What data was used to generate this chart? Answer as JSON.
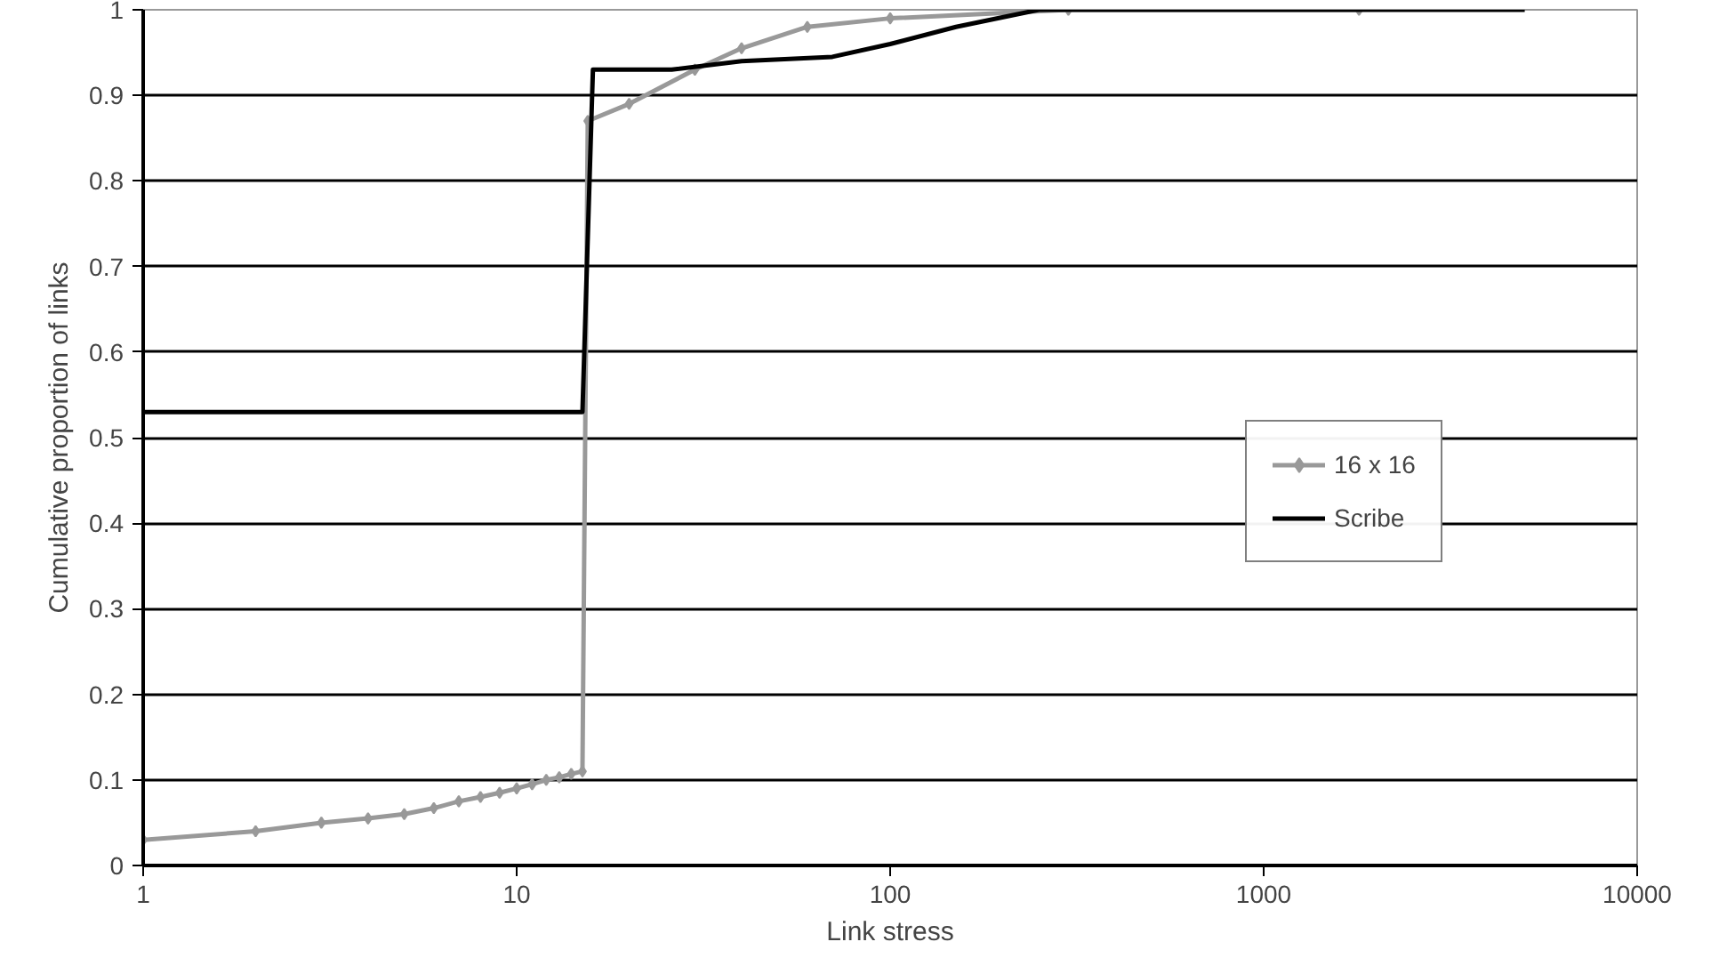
{
  "chart_data": {
    "type": "line",
    "xlabel": "Link stress",
    "ylabel": "Cumulative proportion of links",
    "log": "x",
    "xlim": [
      1,
      10000
    ],
    "ylim": [
      0,
      1
    ],
    "xticks": [
      1,
      10,
      100,
      1000,
      10000
    ],
    "yticks": [
      0,
      0.1,
      0.2,
      0.3,
      0.4,
      0.5,
      0.6,
      0.7,
      0.8,
      0.9,
      1
    ],
    "grid": "y",
    "legend": "right",
    "series": [
      {
        "name": "16 x 16",
        "color": "#999999",
        "marker": "diamond",
        "x": [
          1,
          2,
          3,
          4,
          5,
          6,
          7,
          8,
          9,
          10,
          11,
          12,
          13,
          14,
          15,
          15.5,
          20,
          30,
          40,
          60,
          100,
          300,
          1800
        ],
        "values": [
          0.03,
          0.04,
          0.05,
          0.055,
          0.06,
          0.067,
          0.075,
          0.08,
          0.085,
          0.09,
          0.095,
          0.1,
          0.103,
          0.107,
          0.11,
          0.87,
          0.89,
          0.93,
          0.955,
          0.98,
          0.99,
          1,
          1
        ]
      },
      {
        "name": "Scribe",
        "color": "#000000",
        "marker": "none",
        "x": [
          1,
          15,
          16,
          26,
          40,
          70,
          100,
          150,
          250,
          5000
        ],
        "values": [
          0.53,
          0.53,
          0.93,
          0.93,
          0.94,
          0.945,
          0.96,
          0.98,
          1,
          1
        ]
      }
    ]
  }
}
